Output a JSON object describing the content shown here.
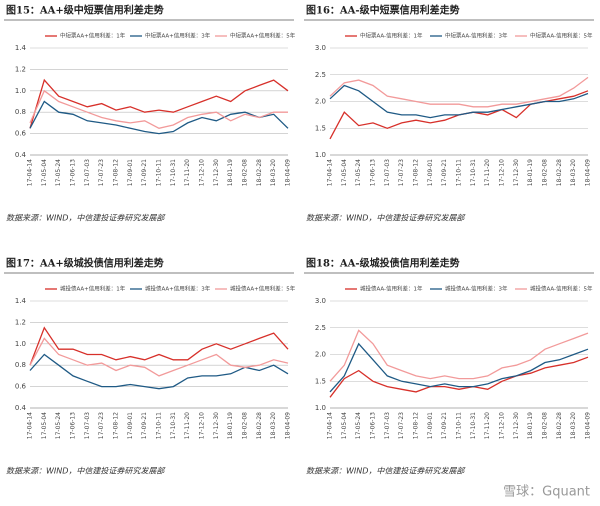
{
  "chart_data": [
    {
      "type": "line",
      "title": "图15：AA+级中短票信用利差走势",
      "source": "数据来源：WIND，中信建投证券研究发展部",
      "categories": [
        "17-04-14",
        "17-05-04",
        "17-05-24",
        "17-06-13",
        "17-07-03",
        "17-07-23",
        "17-08-12",
        "17-09-01",
        "17-09-21",
        "17-10-11",
        "17-10-31",
        "17-11-20",
        "17-12-10",
        "17-12-30",
        "18-01-19",
        "18-02-08",
        "18-02-28",
        "18-03-20",
        "18-04-09"
      ],
      "ylim": [
        0.4,
        1.4
      ],
      "yticks": [
        0.4,
        0.6,
        0.8,
        {
          "value": 1,
          "label": "1.0"
        },
        1.2,
        1.4
      ],
      "grid": true,
      "series": [
        {
          "name": "中短票AA+信用利差：1年",
          "color": "#d7302a",
          "values": [
            0.65,
            1.1,
            0.95,
            0.9,
            0.85,
            0.88,
            0.82,
            0.85,
            0.8,
            0.82,
            0.8,
            0.85,
            0.9,
            0.95,
            0.9,
            1.0,
            1.05,
            1.1,
            1.0
          ]
        },
        {
          "name": "中短票AA+信用利差：3年",
          "color": "#1f5a85",
          "values": [
            0.65,
            0.9,
            0.8,
            0.78,
            0.72,
            0.7,
            0.68,
            0.65,
            0.62,
            0.6,
            0.62,
            0.7,
            0.75,
            0.72,
            0.78,
            0.8,
            0.75,
            0.78,
            0.65
          ]
        },
        {
          "name": "中短票AA+信用利差：5年",
          "color": "#f29a9a",
          "values": [
            0.7,
            1.0,
            0.9,
            0.85,
            0.8,
            0.75,
            0.72,
            0.7,
            0.72,
            0.65,
            0.68,
            0.75,
            0.78,
            0.8,
            0.72,
            0.78,
            0.75,
            0.8,
            0.8
          ]
        }
      ]
    },
    {
      "type": "line",
      "title": "图16：AA-级中短票信用利差走势",
      "source": "数据来源：WIND，中信建投证券研究发展部",
      "categories": [
        "17-04-14",
        "17-05-04",
        "17-05-24",
        "17-06-13",
        "17-07-03",
        "17-07-23",
        "17-08-12",
        "17-09-01",
        "17-09-21",
        "17-10-11",
        "17-10-31",
        "17-11-20",
        "17-12-10",
        "17-12-30",
        "18-01-19",
        "18-02-08",
        "18-02-28",
        "18-03-20",
        "18-04-09"
      ],
      "ylim": [
        1,
        3
      ],
      "yticks": [
        {
          "value": 1,
          "label": "1.0"
        },
        1.5,
        {
          "value": 2,
          "label": "2.0"
        },
        2.5,
        {
          "value": 3,
          "label": "3.0"
        }
      ],
      "grid": true,
      "series": [
        {
          "name": "中短票AA-信用利差：1年",
          "color": "#d7302a",
          "values": [
            1.3,
            1.8,
            1.55,
            1.6,
            1.5,
            1.6,
            1.65,
            1.6,
            1.65,
            1.75,
            1.8,
            1.75,
            1.85,
            1.7,
            1.95,
            2.0,
            2.05,
            2.1,
            2.2
          ]
        },
        {
          "name": "中短票AA-信用利差：3年",
          "color": "#1f5a85",
          "values": [
            2.05,
            2.3,
            2.2,
            2.0,
            1.8,
            1.75,
            1.75,
            1.7,
            1.75,
            1.75,
            1.8,
            1.8,
            1.85,
            1.9,
            1.95,
            2.0,
            2.0,
            2.05,
            2.15
          ]
        },
        {
          "name": "中短票AA-信用利差：5年",
          "color": "#f29a9a",
          "values": [
            2.1,
            2.35,
            2.4,
            2.3,
            2.1,
            2.05,
            2.0,
            1.95,
            1.95,
            1.95,
            1.9,
            1.9,
            1.95,
            1.95,
            2.0,
            2.05,
            2.1,
            2.25,
            2.45
          ]
        }
      ]
    },
    {
      "type": "line",
      "title": "图17：AA+级城投债信用利差走势",
      "source": "数据来源：WIND，中信建投证券研究发展部",
      "categories": [
        "17-04-14",
        "17-05-04",
        "17-05-24",
        "17-06-13",
        "17-07-03",
        "17-07-23",
        "17-08-12",
        "17-09-01",
        "17-09-21",
        "17-10-11",
        "17-10-31",
        "17-11-20",
        "17-12-10",
        "17-12-30",
        "18-01-19",
        "18-02-08",
        "18-02-28",
        "18-03-20",
        "18-04-09"
      ],
      "ylim": [
        0.4,
        1.4
      ],
      "yticks": [
        0.4,
        0.6,
        0.8,
        {
          "value": 1,
          "label": "1.0"
        },
        1.2,
        1.4
      ],
      "grid": true,
      "series": [
        {
          "name": "城投债AA+信用利差：1年",
          "color": "#d7302a",
          "values": [
            0.8,
            1.15,
            0.95,
            0.95,
            0.9,
            0.9,
            0.85,
            0.88,
            0.85,
            0.9,
            0.85,
            0.85,
            0.95,
            1.0,
            0.95,
            1.0,
            1.05,
            1.1,
            0.95
          ]
        },
        {
          "name": "城投债AA+信用利差：3年",
          "color": "#1f5a85",
          "values": [
            0.75,
            0.9,
            0.8,
            0.7,
            0.65,
            0.6,
            0.6,
            0.62,
            0.6,
            0.58,
            0.6,
            0.68,
            0.7,
            0.7,
            0.72,
            0.78,
            0.75,
            0.8,
            0.72
          ]
        },
        {
          "name": "城投债AA+信用利差：5年",
          "color": "#f29a9a",
          "values": [
            0.8,
            1.05,
            0.9,
            0.85,
            0.8,
            0.82,
            0.75,
            0.8,
            0.78,
            0.7,
            0.75,
            0.8,
            0.85,
            0.9,
            0.8,
            0.78,
            0.8,
            0.85,
            0.82
          ]
        }
      ]
    },
    {
      "type": "line",
      "title": "图18：AA-级城投债信用利差走势",
      "source": "数据来源：WIND，中信建投证券研究发展部",
      "categories": [
        "17-04-14",
        "17-05-04",
        "17-05-24",
        "17-06-13",
        "17-07-03",
        "17-07-23",
        "17-08-12",
        "17-09-01",
        "17-09-21",
        "17-10-11",
        "17-10-31",
        "17-11-20",
        "17-12-10",
        "17-12-30",
        "18-01-19",
        "18-02-08",
        "18-02-28",
        "18-03-20",
        "18-04-09"
      ],
      "ylim": [
        1,
        3
      ],
      "yticks": [
        {
          "value": 1,
          "label": "1.0"
        },
        1.5,
        {
          "value": 2,
          "label": "2.0"
        },
        2.5,
        {
          "value": 3,
          "label": "3.0"
        }
      ],
      "grid": true,
      "series": [
        {
          "name": "城投债AA-信用利差：1年",
          "color": "#d7302a",
          "values": [
            1.2,
            1.55,
            1.7,
            1.5,
            1.4,
            1.35,
            1.3,
            1.4,
            1.4,
            1.35,
            1.4,
            1.35,
            1.5,
            1.6,
            1.65,
            1.75,
            1.8,
            1.85,
            1.95
          ]
        },
        {
          "name": "城投债AA-信用利差：3年",
          "color": "#1f5a85",
          "values": [
            1.3,
            1.6,
            2.2,
            1.9,
            1.6,
            1.5,
            1.45,
            1.4,
            1.45,
            1.4,
            1.4,
            1.45,
            1.55,
            1.6,
            1.7,
            1.85,
            1.9,
            2.0,
            2.1
          ]
        },
        {
          "name": "城投债AA-信用利差：5年",
          "color": "#f29a9a",
          "values": [
            1.5,
            1.8,
            2.45,
            2.2,
            1.8,
            1.7,
            1.6,
            1.55,
            1.6,
            1.55,
            1.55,
            1.6,
            1.75,
            1.8,
            1.9,
            2.1,
            2.2,
            2.3,
            2.4
          ]
        }
      ]
    }
  ],
  "watermark": "雪球：Gquant"
}
